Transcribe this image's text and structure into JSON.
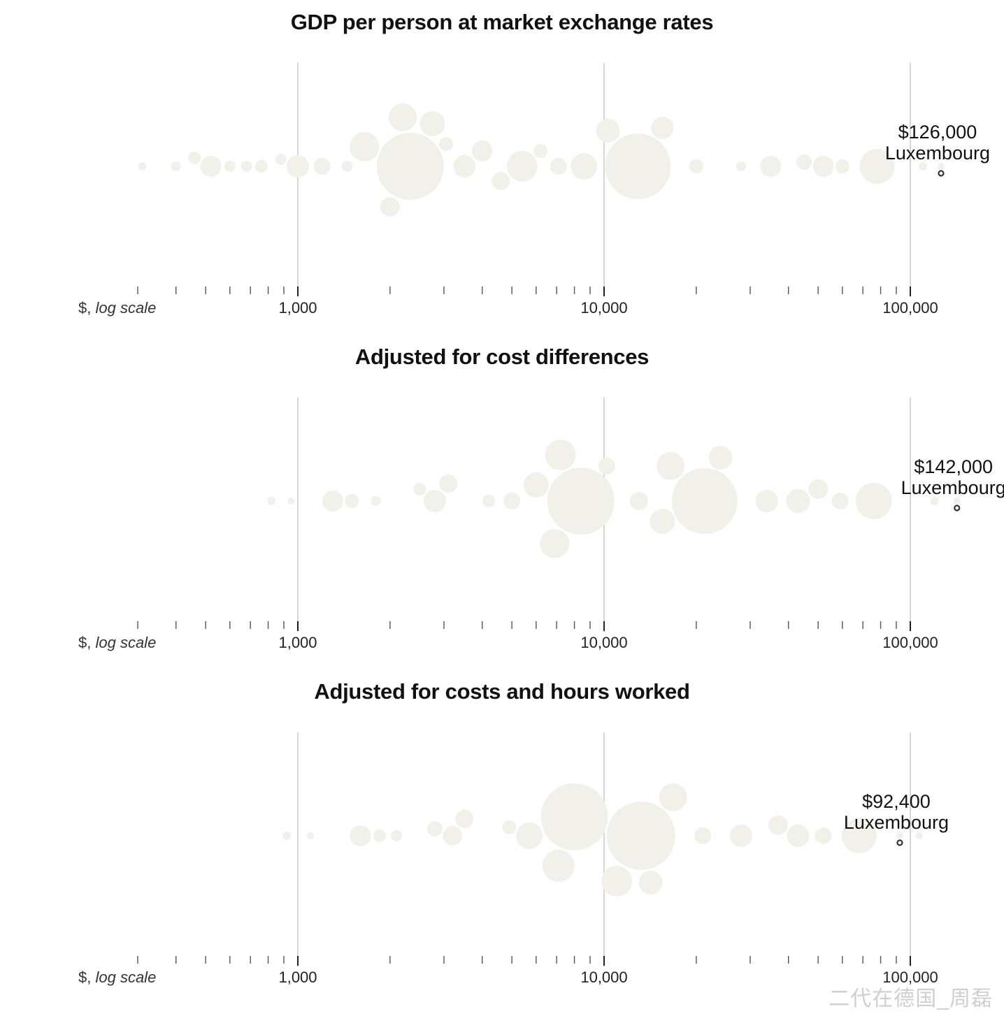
{
  "chart_data": [
    {
      "type": "scatter",
      "subtype": "bubble-beeswarm",
      "title": "GDP per person at market exchange rates",
      "x_scale": "log",
      "xlim": [
        250,
        150000
      ],
      "x_ticks": [
        1000,
        10000,
        100000
      ],
      "x_tick_labels": [
        "1,000",
        "10,000",
        "100,000"
      ],
      "unit_label_prefix": "$, ",
      "unit_label_italic": "log scale",
      "bubble_color": "#f1f1ea",
      "highlight": {
        "label": "Luxembourg",
        "value_label": "$126,000",
        "x": 126000
      },
      "bubbles": [
        {
          "x": 310,
          "r": 6
        },
        {
          "x": 400,
          "r": 7
        },
        {
          "x": 460,
          "r": 9
        },
        {
          "x": 520,
          "r": 15
        },
        {
          "x": 600,
          "r": 8
        },
        {
          "x": 680,
          "r": 8
        },
        {
          "x": 760,
          "r": 9
        },
        {
          "x": 880,
          "r": 8
        },
        {
          "x": 1000,
          "r": 16
        },
        {
          "x": 1200,
          "r": 12
        },
        {
          "x": 1450,
          "r": 8
        },
        {
          "x": 1650,
          "r": 21
        },
        {
          "x": 2000,
          "r": 14
        },
        {
          "x": 2330,
          "r": 48
        },
        {
          "x": 2200,
          "r": 20
        },
        {
          "x": 2750,
          "r": 18
        },
        {
          "x": 3050,
          "r": 10
        },
        {
          "x": 3500,
          "r": 16
        },
        {
          "x": 4000,
          "r": 15
        },
        {
          "x": 4600,
          "r": 13
        },
        {
          "x": 5400,
          "r": 22
        },
        {
          "x": 6200,
          "r": 10
        },
        {
          "x": 7100,
          "r": 12
        },
        {
          "x": 8600,
          "r": 19
        },
        {
          "x": 12900,
          "r": 47
        },
        {
          "x": 10300,
          "r": 17
        },
        {
          "x": 15500,
          "r": 16
        },
        {
          "x": 20000,
          "r": 10
        },
        {
          "x": 28000,
          "r": 7
        },
        {
          "x": 35000,
          "r": 15
        },
        {
          "x": 45000,
          "r": 11
        },
        {
          "x": 52000,
          "r": 15
        },
        {
          "x": 60000,
          "r": 10
        },
        {
          "x": 78000,
          "r": 25
        },
        {
          "x": 110000,
          "r": 6
        },
        {
          "x": 126000,
          "r": 5
        }
      ]
    },
    {
      "type": "scatter",
      "subtype": "bubble-beeswarm",
      "title": "Adjusted for cost differences",
      "x_scale": "log",
      "xlim": [
        250,
        150000
      ],
      "x_ticks": [
        1000,
        10000,
        100000
      ],
      "x_tick_labels": [
        "1,000",
        "10,000",
        "100,000"
      ],
      "unit_label_prefix": "$, ",
      "unit_label_italic": "log scale",
      "bubble_color": "#f1f1ea",
      "highlight": {
        "label": "Luxembourg",
        "value_label": "$142,000",
        "x": 142000
      },
      "bubbles": [
        {
          "x": 820,
          "r": 6
        },
        {
          "x": 950,
          "r": 5
        },
        {
          "x": 1300,
          "r": 15
        },
        {
          "x": 1500,
          "r": 10
        },
        {
          "x": 1800,
          "r": 7
        },
        {
          "x": 2500,
          "r": 9
        },
        {
          "x": 2800,
          "r": 16
        },
        {
          "x": 3100,
          "r": 13
        },
        {
          "x": 4200,
          "r": 9
        },
        {
          "x": 5000,
          "r": 12
        },
        {
          "x": 6000,
          "r": 18
        },
        {
          "x": 8400,
          "r": 48
        },
        {
          "x": 7200,
          "r": 22
        },
        {
          "x": 6900,
          "r": 21
        },
        {
          "x": 10200,
          "r": 12
        },
        {
          "x": 13000,
          "r": 13
        },
        {
          "x": 15500,
          "r": 18
        },
        {
          "x": 21300,
          "r": 47
        },
        {
          "x": 16500,
          "r": 20
        },
        {
          "x": 24000,
          "r": 17
        },
        {
          "x": 34000,
          "r": 16
        },
        {
          "x": 43000,
          "r": 17
        },
        {
          "x": 50000,
          "r": 14
        },
        {
          "x": 59000,
          "r": 12
        },
        {
          "x": 76000,
          "r": 26
        },
        {
          "x": 120000,
          "r": 6
        },
        {
          "x": 142000,
          "r": 5
        }
      ]
    },
    {
      "type": "scatter",
      "subtype": "bubble-beeswarm",
      "title": "Adjusted for costs and hours worked",
      "x_scale": "log",
      "xlim": [
        250,
        150000
      ],
      "x_ticks": [
        1000,
        10000,
        100000
      ],
      "x_tick_labels": [
        "1,000",
        "10,000",
        "100,000"
      ],
      "unit_label_prefix": "$, ",
      "unit_label_italic": "log scale",
      "bubble_color": "#f1f1ea",
      "highlight": {
        "label": "Luxembourg",
        "value_label": "$92,400",
        "x": 92400
      },
      "bubbles": [
        {
          "x": 920,
          "r": 6
        },
        {
          "x": 1100,
          "r": 5
        },
        {
          "x": 1600,
          "r": 15
        },
        {
          "x": 1850,
          "r": 9
        },
        {
          "x": 2100,
          "r": 8
        },
        {
          "x": 2800,
          "r": 11
        },
        {
          "x": 3200,
          "r": 14
        },
        {
          "x": 3500,
          "r": 13
        },
        {
          "x": 4900,
          "r": 10
        },
        {
          "x": 5700,
          "r": 19
        },
        {
          "x": 8000,
          "r": 48
        },
        {
          "x": 7100,
          "r": 23
        },
        {
          "x": 13200,
          "r": 49
        },
        {
          "x": 11000,
          "r": 22
        },
        {
          "x": 16800,
          "r": 20
        },
        {
          "x": 14200,
          "r": 17
        },
        {
          "x": 21000,
          "r": 12
        },
        {
          "x": 28000,
          "r": 16
        },
        {
          "x": 37000,
          "r": 14
        },
        {
          "x": 43000,
          "r": 16
        },
        {
          "x": 52000,
          "r": 12
        },
        {
          "x": 68000,
          "r": 25
        },
        {
          "x": 92400,
          "r": 5
        },
        {
          "x": 107000,
          "r": 5
        }
      ]
    }
  ],
  "watermark": "二代在德国_周磊"
}
